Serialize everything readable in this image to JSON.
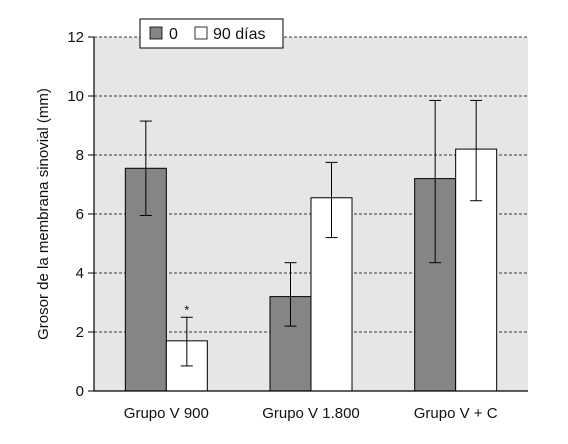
{
  "chart_data": {
    "type": "bar",
    "title": "",
    "xlabel": "",
    "ylabel": "Grosor de la membrana sinovial (mm)",
    "ylim": [
      0,
      12
    ],
    "yticks": [
      "0",
      "2",
      "4",
      "6",
      "8",
      "10",
      "12"
    ],
    "categories": [
      "Grupo V 900",
      "Grupo V 1.800",
      "Grupo V + C"
    ],
    "series": [
      {
        "name": "0",
        "color": "#858585",
        "values": [
          7.55,
          3.2,
          7.2
        ],
        "err_low": [
          5.95,
          2.2,
          4.35
        ],
        "err_high": [
          9.15,
          4.35,
          9.85
        ]
      },
      {
        "name": "90 días",
        "color": "#ffffff",
        "values": [
          1.7,
          6.55,
          8.2
        ],
        "err_low": [
          0.85,
          5.2,
          6.45
        ],
        "err_high": [
          2.5,
          7.75,
          9.85
        ]
      }
    ],
    "annotations": [
      {
        "series": 1,
        "category": 0,
        "text": "*"
      }
    ],
    "grid": true,
    "legend_position": "top-center",
    "plot_background": "#e6e6e6"
  }
}
